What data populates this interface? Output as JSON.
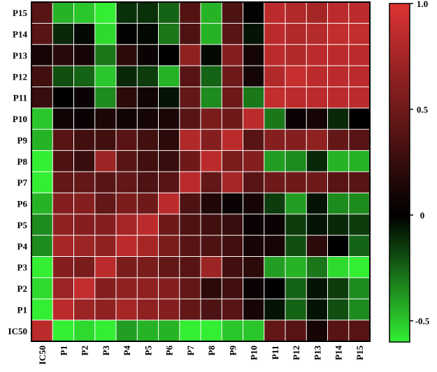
{
  "chart_data": {
    "type": "heatmap",
    "title": "",
    "xlabel": "",
    "ylabel": "",
    "x_labels": [
      "IC50",
      "P1",
      "P2",
      "P3",
      "P4",
      "P5",
      "P6",
      "P7",
      "P8",
      "P9",
      "P10",
      "P11",
      "P12",
      "P13",
      "P14",
      "P15"
    ],
    "y_labels_top_to_bottom": [
      "P15",
      "P14",
      "P13",
      "P12",
      "P11",
      "P10",
      "P9",
      "P8",
      "P7",
      "P6",
      "P5",
      "P4",
      "P3",
      "P2",
      "P1",
      "IC50"
    ],
    "values_top_to_bottom": [
      [
        0.4,
        -0.45,
        -0.5,
        -0.62,
        -0.12,
        -0.12,
        -0.25,
        0.38,
        -0.45,
        0.35,
        0.02,
        0.85,
        0.8,
        0.75,
        0.85,
        0.85
      ],
      [
        0.4,
        -0.1,
        -0.02,
        -0.55,
        0.02,
        -0.02,
        -0.3,
        0.35,
        -0.45,
        0.4,
        -0.05,
        0.85,
        0.8,
        0.82,
        0.88,
        0.88
      ],
      [
        0.1,
        0.18,
        0.1,
        -0.3,
        0.2,
        0.05,
        0.0,
        0.65,
        -0.02,
        0.6,
        0.1,
        0.85,
        0.8,
        0.85,
        0.85,
        0.85
      ],
      [
        0.3,
        -0.2,
        -0.25,
        -0.5,
        -0.1,
        -0.15,
        -0.45,
        0.4,
        -0.25,
        0.5,
        0.1,
        0.8,
        0.9,
        0.85,
        0.85,
        0.85
      ],
      [
        0.25,
        0.0,
        0.05,
        -0.35,
        0.2,
        0.08,
        -0.05,
        0.45,
        -0.35,
        0.5,
        -0.3,
        0.88,
        0.85,
        0.85,
        0.85,
        0.85
      ],
      [
        -0.5,
        0.08,
        0.05,
        0.12,
        0.08,
        0.1,
        0.12,
        0.4,
        0.55,
        0.5,
        0.85,
        -0.3,
        0.05,
        0.1,
        -0.1,
        0.0
      ],
      [
        -0.45,
        0.4,
        0.3,
        0.3,
        0.4,
        0.3,
        0.2,
        0.8,
        0.6,
        0.85,
        0.4,
        0.6,
        0.6,
        0.65,
        0.45,
        0.4
      ],
      [
        -0.62,
        0.35,
        0.25,
        0.7,
        0.4,
        0.3,
        0.25,
        0.5,
        0.85,
        0.55,
        0.6,
        -0.4,
        -0.35,
        -0.1,
        -0.45,
        -0.45
      ],
      [
        -0.6,
        0.45,
        0.45,
        0.4,
        0.45,
        0.35,
        0.4,
        0.85,
        0.45,
        0.75,
        0.4,
        0.5,
        0.5,
        0.5,
        0.4,
        0.4
      ],
      [
        -0.45,
        0.6,
        0.6,
        0.45,
        0.55,
        0.5,
        0.85,
        0.35,
        0.15,
        0.05,
        0.1,
        -0.15,
        -0.4,
        -0.05,
        -0.35,
        -0.35
      ],
      [
        -0.35,
        0.65,
        0.6,
        0.6,
        0.75,
        0.85,
        0.5,
        0.35,
        0.3,
        0.25,
        0.05,
        0.05,
        -0.15,
        -0.05,
        -0.1,
        -0.15
      ],
      [
        -0.35,
        0.75,
        0.7,
        0.65,
        0.85,
        0.75,
        0.55,
        0.4,
        0.35,
        0.3,
        0.1,
        0.1,
        -0.2,
        0.2,
        0.0,
        -0.25
      ],
      [
        -0.62,
        0.6,
        0.55,
        0.85,
        0.55,
        0.55,
        0.45,
        0.4,
        0.7,
        0.3,
        0.2,
        -0.4,
        -0.45,
        -0.3,
        -0.55,
        -0.65
      ],
      [
        -0.55,
        0.7,
        0.88,
        0.6,
        0.65,
        0.65,
        0.6,
        0.45,
        0.2,
        0.3,
        0.05,
        0.0,
        -0.25,
        -0.05,
        -0.15,
        -0.35
      ],
      [
        -0.6,
        0.85,
        0.7,
        0.65,
        0.75,
        0.65,
        0.6,
        0.45,
        0.35,
        0.4,
        0.1,
        -0.05,
        -0.25,
        -0.05,
        -0.2,
        -0.35
      ],
      [
        0.85,
        -0.6,
        -0.55,
        -0.62,
        -0.4,
        -0.45,
        -0.45,
        -0.6,
        -0.62,
        -0.5,
        -0.5,
        0.45,
        0.4,
        0.1,
        0.4,
        0.4
      ]
    ],
    "colorbar": {
      "min": -0.6,
      "max": 1.0,
      "ticks": [
        1.0,
        0.5,
        0,
        -0.5
      ],
      "tick_labels": [
        "1.0",
        "0.5",
        "0",
        "-0.5"
      ],
      "colors": {
        "min": "#33ee33",
        "mid": "#000000",
        "max": "#dd3333"
      }
    },
    "grid": true,
    "legend": "right"
  }
}
